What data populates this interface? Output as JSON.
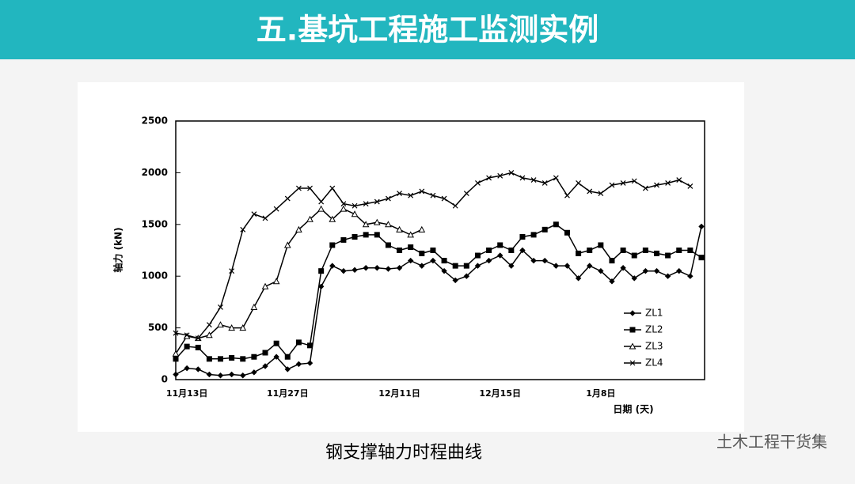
{
  "header": {
    "title": "五.基坑工程施工监测实例"
  },
  "watermark": "土木工程干货集",
  "chart_data": {
    "type": "line",
    "title": "钢支撑轴力时程曲线",
    "xlabel": "日期 (天)",
    "ylabel": "轴力 (kN)",
    "categories": [
      null,
      "11月13日",
      null,
      null,
      null,
      null,
      null,
      null,
      null,
      null,
      "11月27日",
      null,
      null,
      null,
      null,
      null,
      null,
      null,
      null,
      null,
      "12月11日",
      null,
      null,
      null,
      null,
      null,
      null,
      null,
      null,
      "12月15日",
      null,
      null,
      null,
      null,
      null,
      null,
      null,
      null,
      "1月8日",
      null,
      null,
      null,
      null,
      null,
      null,
      null,
      null,
      null
    ],
    "ylim": [
      0,
      2500
    ],
    "yticks": [
      0,
      500,
      1000,
      1500,
      2000,
      2500
    ],
    "legend": "lower right",
    "series": [
      {
        "name": "ZL1",
        "color": "#000000",
        "marker": "diamond",
        "values": [
          50,
          110,
          100,
          50,
          40,
          50,
          40,
          70,
          130,
          220,
          100,
          150,
          160,
          900,
          1100,
          1050,
          1060,
          1080,
          1080,
          1070,
          1080,
          1150,
          1100,
          1150,
          1050,
          960,
          1000,
          1100,
          1150,
          1200,
          1100,
          1250,
          1150,
          1150,
          1100,
          1100,
          980,
          1100,
          1050,
          950,
          1080,
          980,
          1050,
          1050,
          1000,
          1050,
          1000,
          1480
        ]
      },
      {
        "name": "ZL2",
        "color": "#000000",
        "marker": "square",
        "values": [
          200,
          320,
          310,
          200,
          200,
          210,
          200,
          220,
          260,
          350,
          220,
          360,
          330,
          1050,
          1300,
          1350,
          1380,
          1400,
          1400,
          1300,
          1250,
          1280,
          1220,
          1250,
          1150,
          1100,
          1100,
          1200,
          1250,
          1300,
          1250,
          1380,
          1400,
          1450,
          1500,
          1420,
          1220,
          1250,
          1300,
          1150,
          1250,
          1200,
          1250,
          1220,
          1200,
          1250,
          1250,
          1180
        ]
      },
      {
        "name": "ZL3",
        "color": "#000000",
        "marker": "triangle",
        "values": [
          250,
          420,
          400,
          430,
          530,
          500,
          500,
          700,
          900,
          950,
          1300,
          1450,
          1550,
          1650,
          1550,
          1650,
          1600,
          1500,
          1520,
          1500,
          1450,
          1400,
          1450,
          null,
          null,
          null,
          null,
          null,
          null,
          null,
          null,
          null,
          null,
          null,
          null,
          null,
          null,
          null,
          null,
          null,
          null,
          null,
          null,
          null,
          null,
          null,
          null,
          null
        ]
      },
      {
        "name": "ZL4",
        "color": "#000000",
        "marker": "x",
        "values": [
          450,
          430,
          400,
          530,
          700,
          1050,
          1450,
          1600,
          1560,
          1650,
          1750,
          1850,
          1850,
          1720,
          1850,
          1700,
          1680,
          1700,
          1720,
          1750,
          1800,
          1780,
          1820,
          1780,
          1750,
          1680,
          1800,
          1900,
          1950,
          1970,
          2000,
          1950,
          1930,
          1900,
          1950,
          1780,
          1900,
          1820,
          1800,
          1880,
          1900,
          1920,
          1850,
          1880,
          1900,
          1930,
          1870,
          null
        ]
      }
    ]
  }
}
